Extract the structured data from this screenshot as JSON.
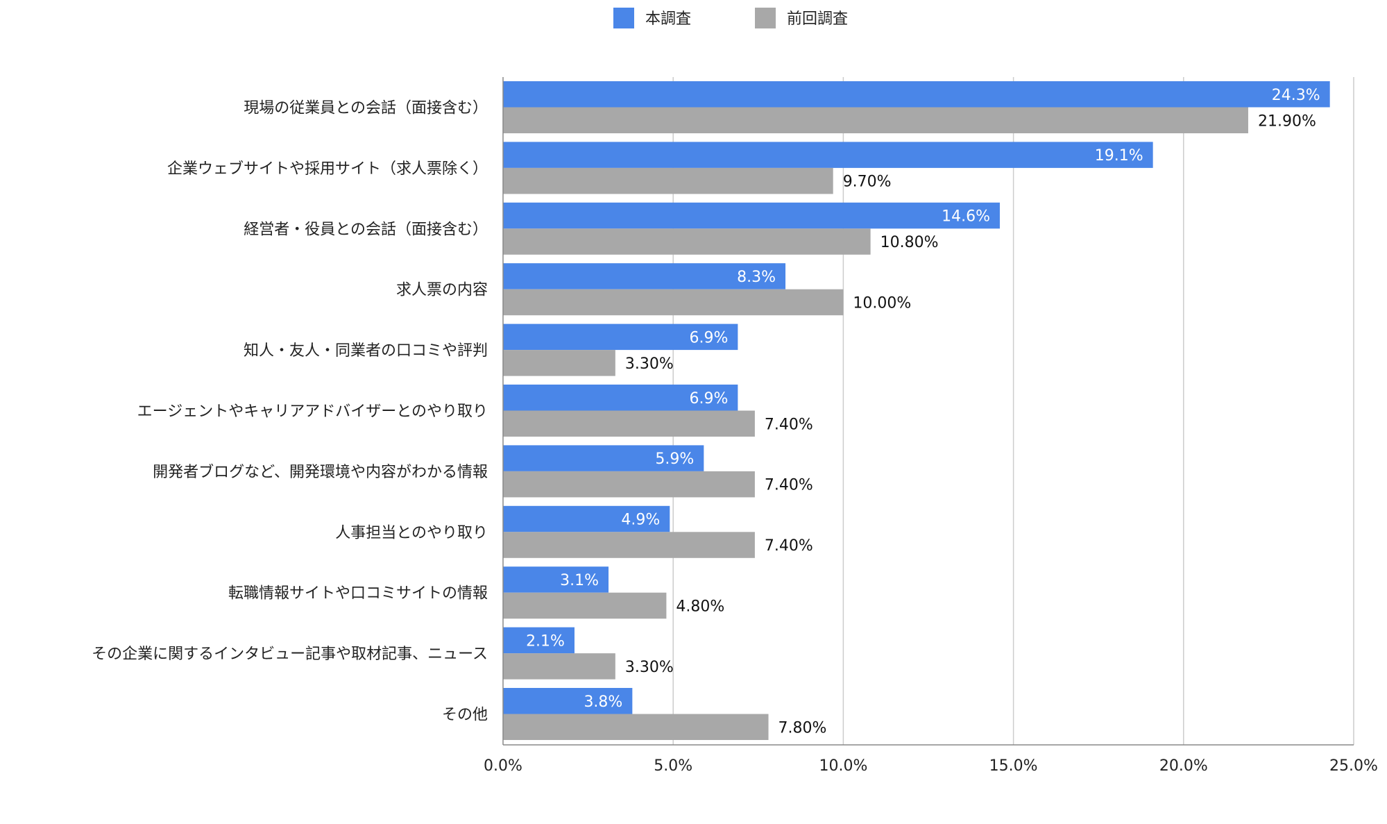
{
  "chart_data": {
    "type": "bar",
    "orientation": "horizontal",
    "categories": [
      "現場の従業員との会話（面接含む）",
      "企業ウェブサイトや採用サイト（求人票除く）",
      "経営者・役員との会話（面接含む）",
      "求人票の内容",
      "知人・友人・同業者の口コミや評判",
      "エージェントやキャリアアドバイザーとのやり取り",
      "開発者ブログなど、開発環境や内容がわかる情報",
      "人事担当とのやり取り",
      "転職情報サイトや口コミサイトの情報",
      "その企業に関するインタビュー記事や取材記事、ニュース",
      "その他"
    ],
    "series": [
      {
        "name": "本調査",
        "color": "#4a86e8",
        "values": [
          24.3,
          19.1,
          14.6,
          8.3,
          6.9,
          6.9,
          5.9,
          4.9,
          3.1,
          2.1,
          3.8
        ],
        "labels": [
          "24.3%",
          "19.1%",
          "14.6%",
          "8.3%",
          "6.9%",
          "6.9%",
          "5.9%",
          "4.9%",
          "3.1%",
          "2.1%",
          "3.8%"
        ]
      },
      {
        "name": "前回調査",
        "color": "#a8a8a8",
        "values": [
          21.9,
          9.7,
          10.8,
          10.0,
          3.3,
          7.4,
          7.4,
          7.4,
          4.8,
          3.3,
          7.8
        ],
        "labels": [
          "21.90%",
          "9.70%",
          "10.80%",
          "10.00%",
          "3.30%",
          "7.40%",
          "7.40%",
          "7.40%",
          "4.80%",
          "3.30%",
          "7.80%"
        ]
      }
    ],
    "xlim": [
      0,
      25
    ],
    "xticks": [
      0,
      5,
      10,
      15,
      20,
      25
    ],
    "xtick_labels": [
      "0.0%",
      "5.0%",
      "10.0%",
      "15.0%",
      "20.0%",
      "25.0%"
    ],
    "grid": true,
    "legend_position": "top-center",
    "title": "",
    "xlabel": "",
    "ylabel": ""
  }
}
